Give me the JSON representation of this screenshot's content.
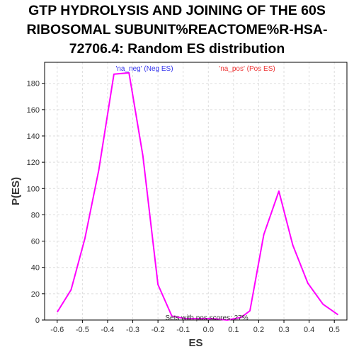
{
  "chart_data": {
    "type": "line",
    "title_lines": [
      "GTP HYDROLYSIS AND JOINING OF THE 60S",
      "RIBOSOMAL SUBUNIT%REACTOME%R-HSA-",
      "72706.4: Random ES distribution"
    ],
    "xlabel": "ES",
    "ylabel": "P(ES)",
    "xlim": [
      -0.65,
      0.55
    ],
    "ylim": [
      0,
      196
    ],
    "x_ticks": [
      -0.6,
      -0.5,
      -0.4,
      -0.3,
      -0.2,
      -0.1,
      0.0,
      0.1,
      0.2,
      0.3,
      0.4,
      0.5
    ],
    "x_tick_labels": [
      "-0.6",
      "-0.5",
      "-0.4",
      "-0.3",
      "-0.2",
      "-0.1",
      "0.0",
      "0.1",
      "0.2",
      "0.3",
      "0.4",
      "0.5"
    ],
    "y_ticks": [
      0,
      20,
      40,
      60,
      80,
      100,
      120,
      140,
      160,
      180
    ],
    "y_tick_labels": [
      "0",
      "20",
      "40",
      "60",
      "80",
      "100",
      "120",
      "140",
      "160",
      "180"
    ],
    "grid": true,
    "series": [
      {
        "color": "#ff00ff",
        "x": [
          -0.6,
          -0.545,
          -0.49,
          -0.435,
          -0.375,
          -0.315,
          -0.26,
          -0.2,
          -0.145,
          -0.09,
          -0.035,
          0.02,
          0.075,
          0.13,
          0.165,
          0.22,
          0.28,
          0.335,
          0.395,
          0.455,
          0.515
        ],
        "y": [
          6,
          23,
          62,
          114,
          187,
          188,
          125,
          27,
          3,
          1,
          1,
          1,
          0,
          2,
          7,
          65,
          98,
          57,
          28,
          12,
          4
        ]
      }
    ],
    "annotations": {
      "neg_label": "'na_neg' (Neg ES)",
      "neg_color": "#3333ee",
      "pos_label": "'na_pos' (Pos ES)",
      "pos_color": "#ee3333",
      "footer": "Sets with pos scores: 27%"
    },
    "colors": {
      "plot_background": "#ffffff",
      "grid": "#dddddd",
      "axis": "#000000"
    }
  }
}
